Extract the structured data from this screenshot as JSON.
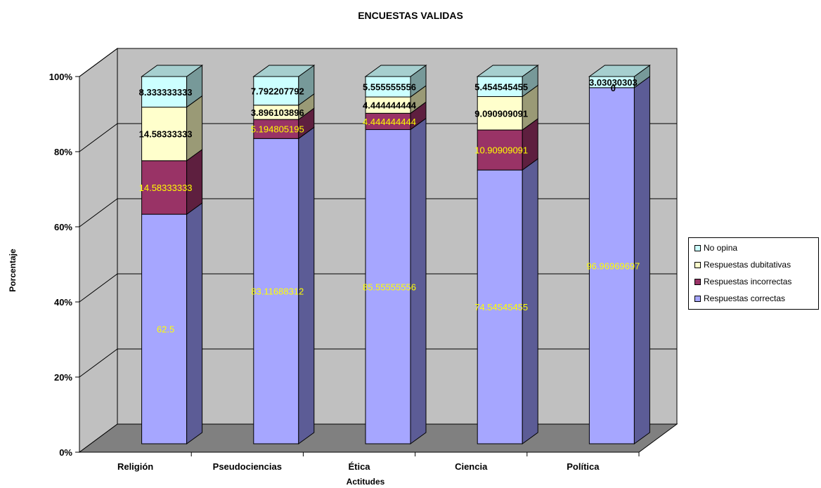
{
  "chart_data": {
    "type": "bar",
    "stacked": true,
    "percent_stacked": true,
    "three_d": true,
    "title": "ENCUESTAS VALIDAS",
    "xlabel": "Actitudes",
    "ylabel": "Porcentaje",
    "categories": [
      "Religión",
      "Pseudociencias",
      "Ética",
      "Ciencia",
      "Política"
    ],
    "y_ticks": [
      "0%",
      "20%",
      "40%",
      "60%",
      "80%",
      "100%"
    ],
    "ylim": [
      0,
      100
    ],
    "grid": true,
    "legend_position": "right",
    "series": [
      {
        "name": "Respuestas correctas",
        "values": [
          62.5,
          83.11688312,
          85.55555556,
          74.54545455,
          96.96969697
        ],
        "labels": [
          "62.5",
          "83.11688312",
          "85.55555556",
          "74.54545455",
          "96.96969697"
        ],
        "color": "#a6a6ff",
        "side_color": "#5c5c96",
        "label_color": "#ffff00"
      },
      {
        "name": "Respuestas incorrectas",
        "values": [
          14.58333333,
          5.194805195,
          4.444444444,
          10.90909091,
          0
        ],
        "labels": [
          "14.58333333",
          "5.194805195",
          "4.444444444",
          "10.90909091",
          ""
        ],
        "color": "#993366",
        "side_color": "#5e1f3f",
        "label_color": "#ffff00"
      },
      {
        "name": "Respuestas dubitativas",
        "values": [
          14.58333333,
          3.896103896,
          4.444444444,
          9.090909091,
          0
        ],
        "labels": [
          "14.58333333",
          "3.896103896",
          "4.444444444",
          "9.090909091",
          "0"
        ],
        "color": "#ffffcc",
        "side_color": "#9a9a76",
        "label_color": "#000000"
      },
      {
        "name": "No opina",
        "values": [
          8.333333333,
          7.792207792,
          5.555555556,
          5.454545455,
          3.03030303
        ],
        "labels": [
          "8.333333333",
          "7.792207792",
          "5.555555556",
          "5.454545455",
          "3.03030303"
        ],
        "color": "#ccffff",
        "side_color": "#779999",
        "label_color": "#000000"
      }
    ],
    "colors": {
      "wall": "#c0c0c0",
      "floor": "#808080",
      "top_face": "#a6cfcf"
    }
  }
}
